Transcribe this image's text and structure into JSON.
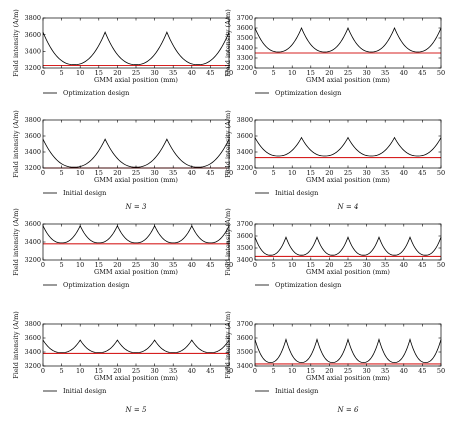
{
  "figure": {
    "captions": [
      "N = 3",
      "N = 4",
      "N = 5",
      "N = 6"
    ]
  },
  "chart_data": [
    {
      "type": "line",
      "panel": "N3-optimization",
      "legend": "Optimization design",
      "xlabel": "GMM axial position (mm)",
      "ylabel": "Field intensity (A/m)",
      "xlim": [
        0,
        50
      ],
      "ylim": [
        3200,
        3800
      ],
      "xticks": [
        0,
        5,
        10,
        15,
        20,
        25,
        30,
        35,
        40,
        45,
        50
      ],
      "yticks": [
        3200,
        3400,
        3600,
        3800
      ],
      "series": [
        {
          "name": "Optimization design",
          "color": "#000000",
          "peaks_x": [
            0,
            16.7,
            33.3,
            50
          ],
          "peak_y": 3630,
          "valley_y": 3240
        },
        {
          "color": "#d62020",
          "x": [
            0,
            50
          ],
          "y": [
            3230,
            3230
          ]
        }
      ]
    },
    {
      "type": "line",
      "panel": "N4-optimization",
      "legend": "Optimization design",
      "xlabel": "GMM axial position (mm)",
      "ylabel": "Field intensity (A/m)",
      "xlim": [
        0,
        50
      ],
      "ylim": [
        3200,
        3700
      ],
      "xticks": [
        0,
        5,
        10,
        15,
        20,
        25,
        30,
        35,
        40,
        45,
        50
      ],
      "yticks": [
        3200,
        3300,
        3400,
        3500,
        3600,
        3700
      ],
      "series": [
        {
          "name": "Optimization design",
          "color": "#000000",
          "peaks_x": [
            0,
            12.5,
            25,
            37.5,
            50
          ],
          "peak_y": 3600,
          "valley_y": 3360
        },
        {
          "color": "#d62020",
          "x": [
            0,
            50
          ],
          "y": [
            3350,
            3350
          ]
        }
      ]
    },
    {
      "type": "line",
      "panel": "N3-initial",
      "legend": "Initial design",
      "xlabel": "GMM axial position (mm)",
      "ylabel": "Field intensity (A/m)",
      "xlim": [
        0,
        50
      ],
      "ylim": [
        3200,
        3800
      ],
      "xticks": [
        0,
        5,
        10,
        15,
        20,
        25,
        30,
        35,
        40,
        45,
        50
      ],
      "yticks": [
        3200,
        3400,
        3600,
        3800
      ],
      "series": [
        {
          "name": "Initial design",
          "color": "#000000",
          "peaks_x": [
            0,
            16.7,
            33.3,
            50
          ],
          "peak_y": 3560,
          "valley_y": 3210
        },
        {
          "color": "#d62020",
          "x": [
            0,
            50
          ],
          "y": [
            3200,
            3200
          ]
        }
      ]
    },
    {
      "type": "line",
      "panel": "N4-initial",
      "legend": "Initial design",
      "xlabel": "GMM axial position (mm)",
      "ylabel": "Field intensity (A/m)",
      "xlim": [
        0,
        50
      ],
      "ylim": [
        3200,
        3800
      ],
      "xticks": [
        0,
        5,
        10,
        15,
        20,
        25,
        30,
        35,
        40,
        45,
        50
      ],
      "yticks": [
        3200,
        3400,
        3600,
        3800
      ],
      "series": [
        {
          "name": "Initial design",
          "color": "#000000",
          "peaks_x": [
            0,
            12.5,
            25,
            37.5,
            50
          ],
          "peak_y": 3580,
          "valley_y": 3350
        },
        {
          "color": "#d62020",
          "x": [
            0,
            50
          ],
          "y": [
            3330,
            3330
          ]
        }
      ]
    },
    {
      "type": "line",
      "panel": "N5-optimization",
      "legend": "Optimization design",
      "xlabel": "GMM axial position (mm)",
      "ylabel": "Field intensity (A/m)",
      "xlim": [
        0,
        50
      ],
      "ylim": [
        3200,
        3600
      ],
      "xticks": [
        0,
        5,
        10,
        15,
        20,
        25,
        30,
        35,
        40,
        45,
        50
      ],
      "yticks": [
        3200,
        3400,
        3600
      ],
      "series": [
        {
          "name": "Optimization design",
          "color": "#000000",
          "peaks_x": [
            0,
            10,
            20,
            30,
            40,
            50
          ],
          "peak_y": 3580,
          "valley_y": 3390
        },
        {
          "color": "#d62020",
          "x": [
            0,
            50
          ],
          "y": [
            3380,
            3380
          ]
        }
      ]
    },
    {
      "type": "line",
      "panel": "N6-optimization",
      "legend": "Optimization design",
      "xlabel": "GMM axial position (mm)",
      "ylabel": "Field intensity (A/m)",
      "xlim": [
        0,
        50
      ],
      "ylim": [
        3400,
        3700
      ],
      "xticks": [
        0,
        5,
        10,
        15,
        20,
        25,
        30,
        35,
        40,
        45,
        50
      ],
      "yticks": [
        3400,
        3500,
        3600,
        3700
      ],
      "series": [
        {
          "name": "Optimization design",
          "color": "#000000",
          "peaks_x": [
            0,
            8.33,
            16.67,
            25,
            33.33,
            41.67,
            50
          ],
          "peak_y": 3590,
          "valley_y": 3440
        },
        {
          "color": "#d62020",
          "x": [
            0,
            50
          ],
          "y": [
            3430,
            3430
          ]
        }
      ]
    },
    {
      "type": "line",
      "panel": "N5-initial",
      "legend": "Initial design",
      "xlabel": "GMM axial position (mm)",
      "ylabel": "Field intensity (A/m)",
      "xlim": [
        0,
        50
      ],
      "ylim": [
        3200,
        3800
      ],
      "xticks": [
        0,
        5,
        10,
        15,
        20,
        25,
        30,
        35,
        40,
        45,
        50
      ],
      "yticks": [
        3200,
        3400,
        3600,
        3800
      ],
      "series": [
        {
          "name": "Initial design",
          "color": "#000000",
          "peaks_x": [
            0,
            10,
            20,
            30,
            40,
            50
          ],
          "peak_y": 3570,
          "valley_y": 3390
        },
        {
          "color": "#d62020",
          "x": [
            0,
            50
          ],
          "y": [
            3380,
            3380
          ]
        }
      ]
    },
    {
      "type": "line",
      "panel": "N6-initial",
      "legend": "Initial design",
      "xlabel": "GMM axial position (mm)",
      "ylabel": "Field intensity (A/m)",
      "xlim": [
        0,
        50
      ],
      "ylim": [
        3400,
        3700
      ],
      "xticks": [
        0,
        5,
        10,
        15,
        20,
        25,
        30,
        35,
        40,
        45,
        50
      ],
      "yticks": [
        3400,
        3500,
        3600,
        3700
      ],
      "series": [
        {
          "name": "Initial design",
          "color": "#000000",
          "peaks_x": [
            0,
            8.33,
            16.67,
            25,
            33.33,
            41.67,
            50
          ],
          "peak_y": 3590,
          "valley_y": 3425
        },
        {
          "color": "#d62020",
          "x": [
            0,
            50
          ],
          "y": [
            3415,
            3415
          ]
        }
      ]
    }
  ]
}
